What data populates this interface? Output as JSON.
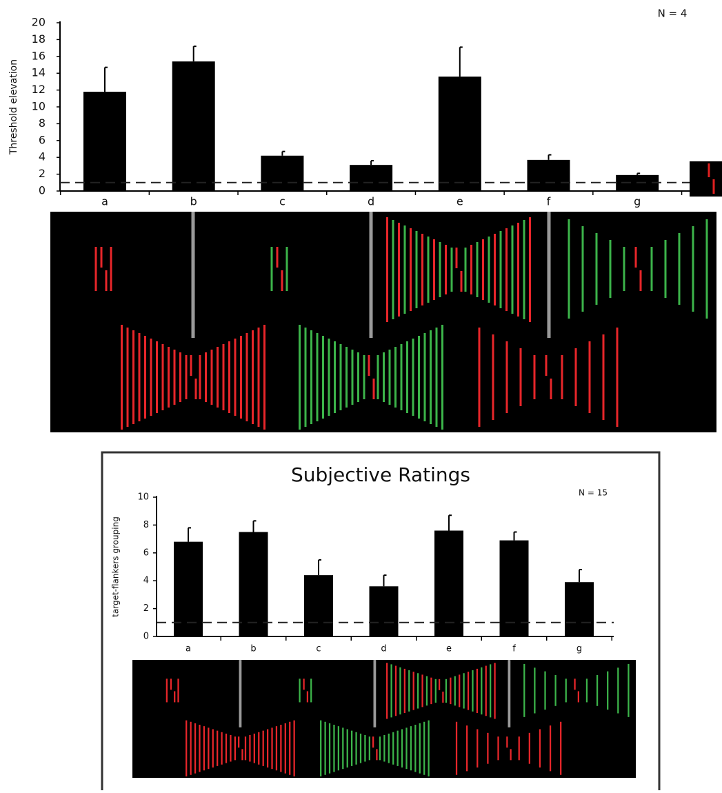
{
  "chart_data": [
    {
      "type": "bar",
      "y_label": "Threshold elevation",
      "annotation": "N = 4",
      "categories": [
        "a",
        "b",
        "c",
        "d",
        "e",
        "f",
        "g"
      ],
      "values": [
        11.8,
        15.4,
        4.2,
        3.1,
        13.6,
        3.7,
        1.9
      ],
      "errors": [
        2.9,
        1.8,
        0.5,
        0.5,
        3.5,
        0.6,
        0.2
      ],
      "color": "#000000",
      "reference_line": 1,
      "ylim": [
        0,
        20
      ],
      "yticks": [
        0,
        2,
        4,
        6,
        8,
        10,
        12,
        14,
        16,
        18,
        20
      ]
    },
    {
      "type": "bar",
      "title": "Subjective Ratings",
      "y_label": "target-flankers grouping",
      "annotation": "N = 15",
      "categories": [
        "a",
        "b",
        "c",
        "d",
        "e",
        "f",
        "g"
      ],
      "values": [
        6.8,
        7.5,
        4.4,
        3.6,
        7.6,
        6.9,
        3.9
      ],
      "errors": [
        1.0,
        0.8,
        1.1,
        0.8,
        1.1,
        0.6,
        0.9
      ],
      "color": "#000000",
      "reference_line": 1,
      "ylim": [
        0,
        10
      ],
      "yticks": [
        0,
        2,
        4,
        6,
        8,
        10
      ]
    }
  ]
}
